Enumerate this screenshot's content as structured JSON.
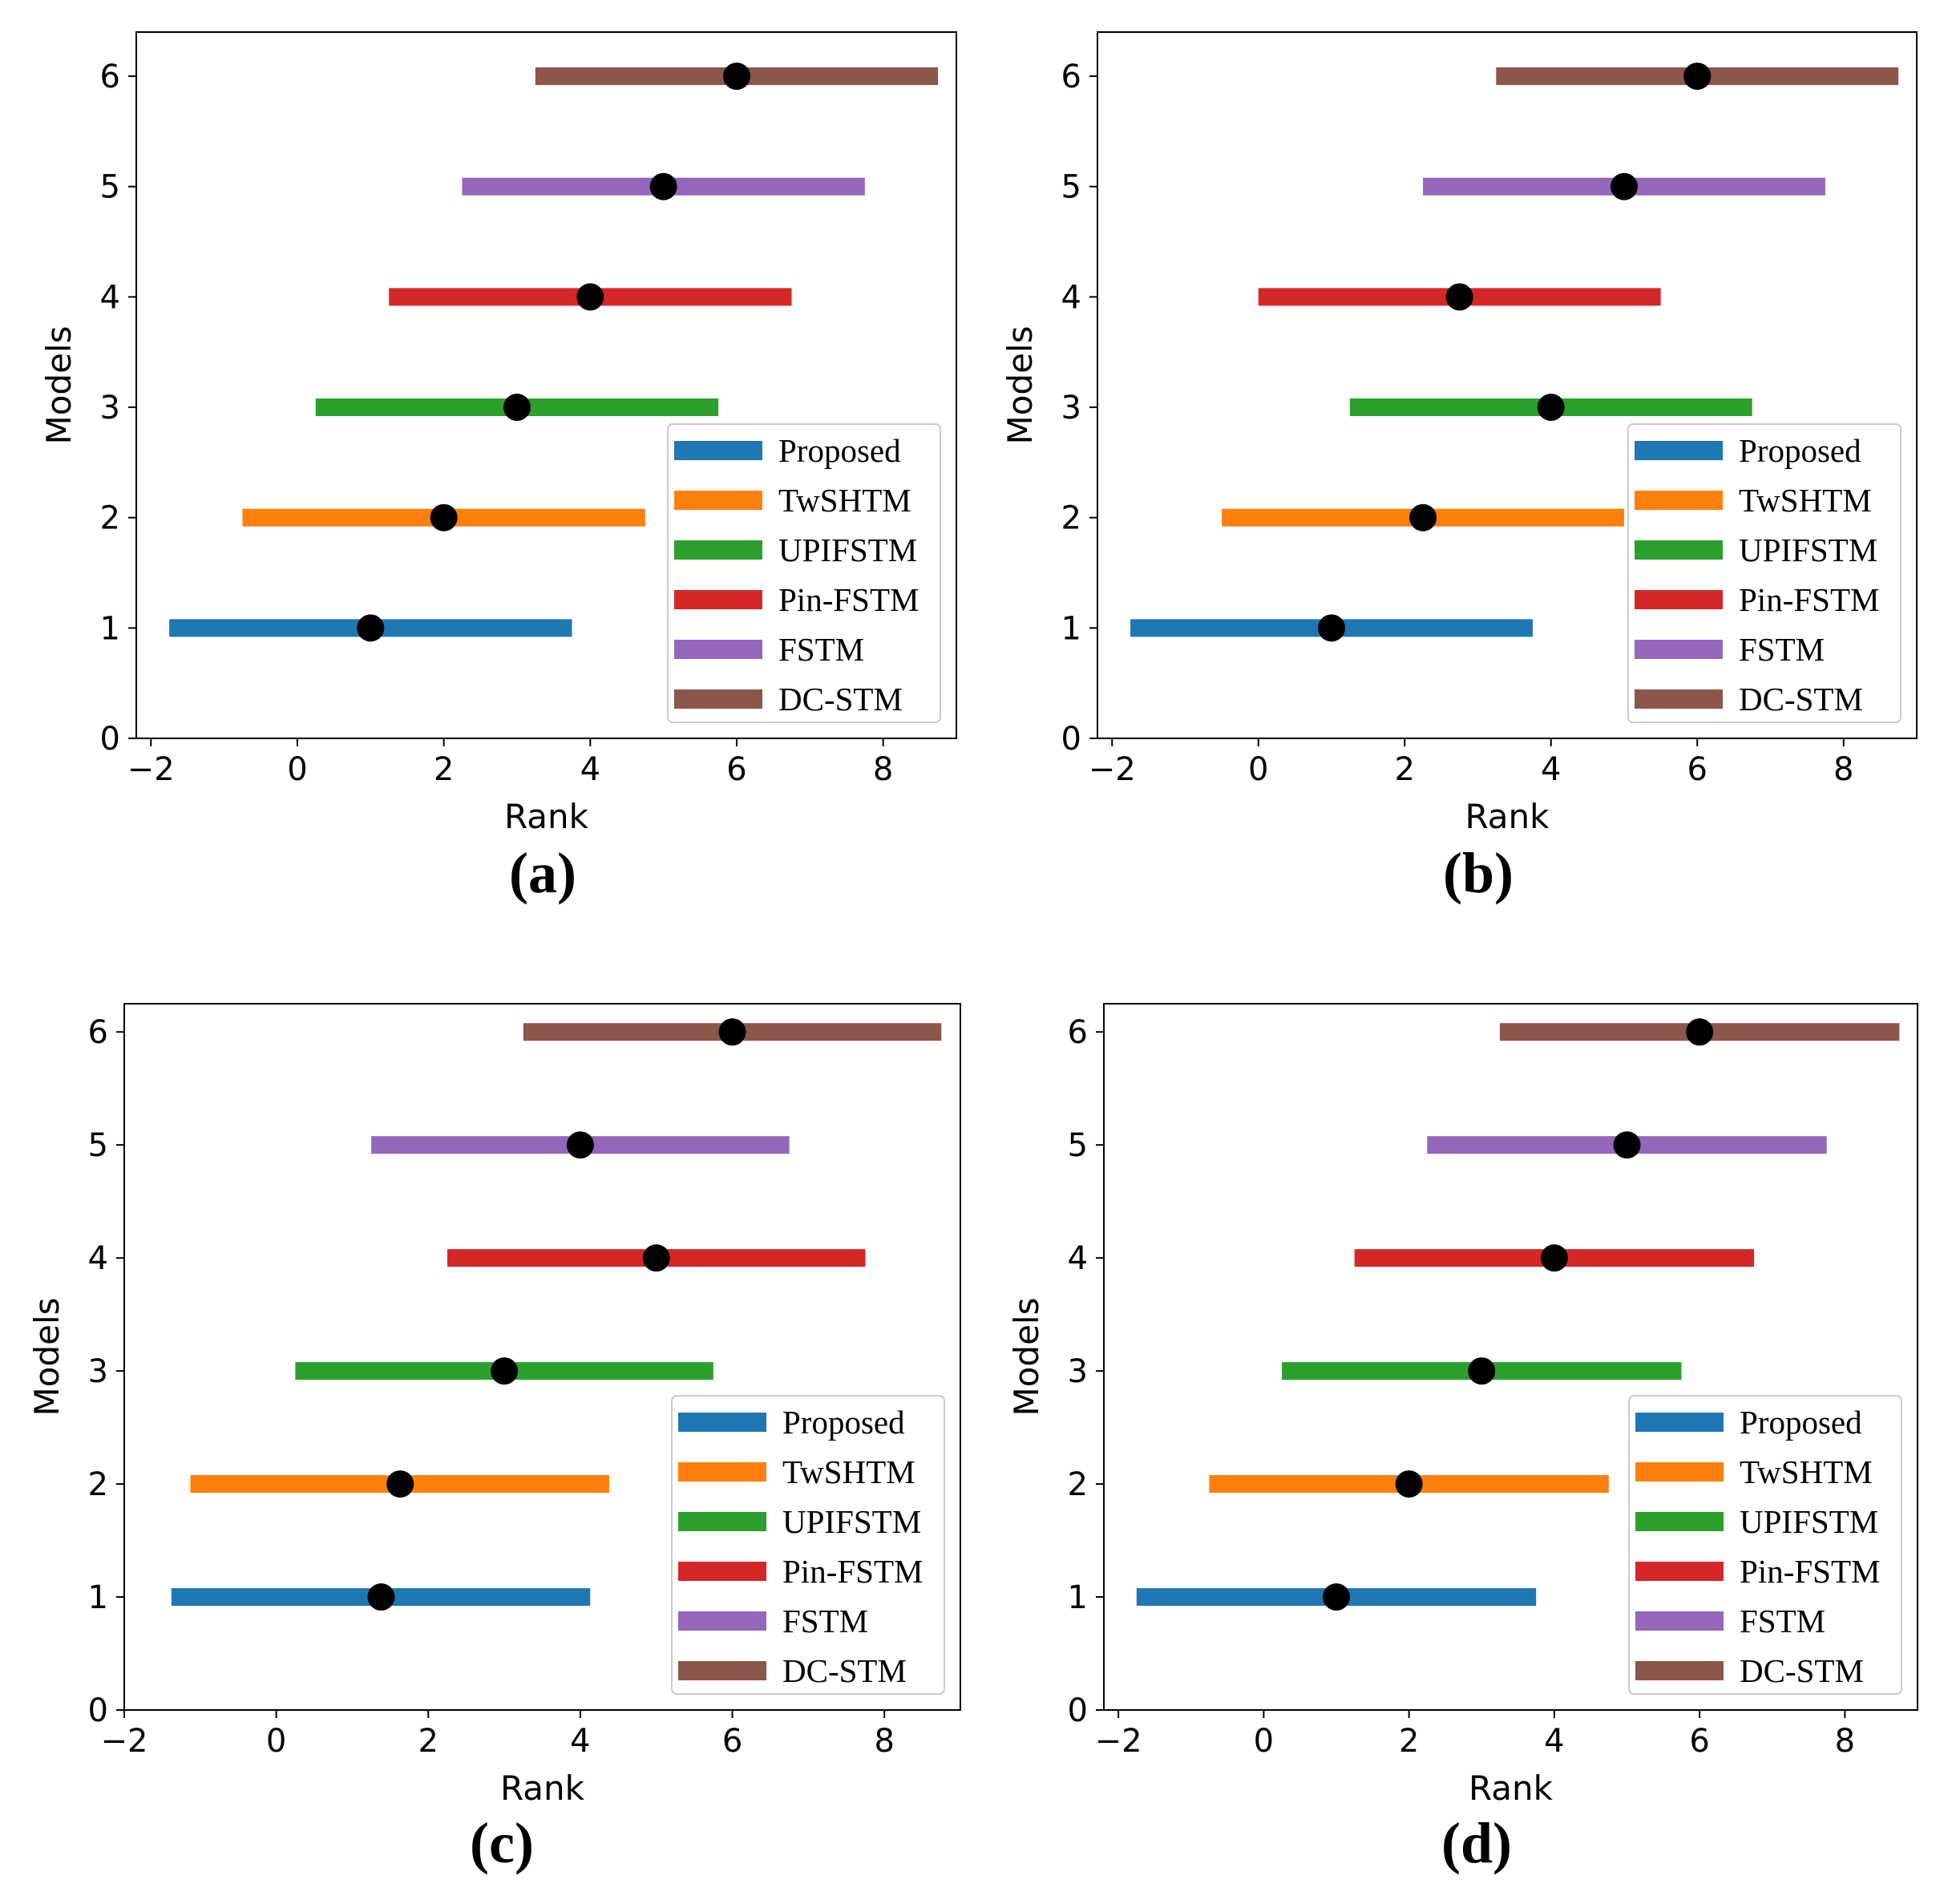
{
  "colors": {
    "Proposed": "#1f77b4",
    "TwSHTM": "#ff7f0e",
    "UPIFSTM": "#2ca02c",
    "Pin-FSTM": "#d62728",
    "FSTM": "#9467bd",
    "DC-STM": "#8c564b",
    "marker": "#000000"
  },
  "chart_data": [
    {
      "type": "interval",
      "panel_label": "(a)",
      "xlabel": "Rank",
      "ylabel": "Models",
      "xlim": [
        -2.2,
        9.0
      ],
      "ylim": [
        0,
        6.4
      ],
      "xticks": [
        -2,
        0,
        2,
        4,
        6,
        8
      ],
      "yticks": [
        0,
        1,
        2,
        3,
        4,
        5,
        6
      ],
      "legend": [
        "Proposed",
        "TwSHTM",
        "UPIFSTM",
        "Pin-FSTM",
        "FSTM",
        "DC-STM"
      ],
      "series": [
        {
          "name": "Proposed",
          "y": 1,
          "low": -1.75,
          "high": 3.75,
          "rank": 1.0
        },
        {
          "name": "TwSHTM",
          "y": 2,
          "low": -0.75,
          "high": 4.75,
          "rank": 2.0
        },
        {
          "name": "UPIFSTM",
          "y": 3,
          "low": 0.25,
          "high": 5.75,
          "rank": 3.0
        },
        {
          "name": "Pin-FSTM",
          "y": 4,
          "low": 1.25,
          "high": 6.75,
          "rank": 4.0
        },
        {
          "name": "FSTM",
          "y": 5,
          "low": 2.25,
          "high": 7.75,
          "rank": 5.0
        },
        {
          "name": "DC-STM",
          "y": 6,
          "low": 3.25,
          "high": 8.75,
          "rank": 6.0
        }
      ]
    },
    {
      "type": "interval",
      "panel_label": "(b)",
      "xlabel": "Rank",
      "ylabel": "Models",
      "xlim": [
        -2.2,
        9.0
      ],
      "ylim": [
        0,
        6.4
      ],
      "xticks": [
        -2,
        0,
        2,
        4,
        6,
        8
      ],
      "yticks": [
        0,
        1,
        2,
        3,
        4,
        5,
        6
      ],
      "legend": [
        "Proposed",
        "TwSHTM",
        "UPIFSTM",
        "Pin-FSTM",
        "FSTM",
        "DC-STM"
      ],
      "series": [
        {
          "name": "Proposed",
          "y": 1,
          "low": -1.75,
          "high": 3.75,
          "rank": 1.0
        },
        {
          "name": "TwSHTM",
          "y": 2,
          "low": -0.5,
          "high": 5.0,
          "rank": 2.25
        },
        {
          "name": "UPIFSTM",
          "y": 3,
          "low": 1.25,
          "high": 6.75,
          "rank": 4.0
        },
        {
          "name": "Pin-FSTM",
          "y": 4,
          "low": 0.0,
          "high": 5.5,
          "rank": 2.75
        },
        {
          "name": "FSTM",
          "y": 5,
          "low": 2.25,
          "high": 7.75,
          "rank": 5.0
        },
        {
          "name": "DC-STM",
          "y": 6,
          "low": 3.25,
          "high": 8.75,
          "rank": 6.0
        }
      ]
    },
    {
      "type": "interval",
      "panel_label": "(c)",
      "xlabel": "Rank",
      "ylabel": "Models",
      "xlim": [
        -2.0,
        9.0
      ],
      "ylim": [
        0,
        6.25
      ],
      "xticks": [
        -2,
        0,
        2,
        4,
        6,
        8
      ],
      "yticks": [
        0,
        1,
        2,
        3,
        4,
        5,
        6
      ],
      "legend": [
        "Proposed",
        "TwSHTM",
        "UPIFSTM",
        "Pin-FSTM",
        "FSTM",
        "DC-STM"
      ],
      "series": [
        {
          "name": "Proposed",
          "y": 1,
          "low": -1.38,
          "high": 4.13,
          "rank": 1.38
        },
        {
          "name": "TwSHTM",
          "y": 2,
          "low": -1.13,
          "high": 4.38,
          "rank": 1.63
        },
        {
          "name": "UPIFSTM",
          "y": 3,
          "low": 0.25,
          "high": 5.75,
          "rank": 3.0
        },
        {
          "name": "Pin-FSTM",
          "y": 4,
          "low": 2.25,
          "high": 7.75,
          "rank": 5.0
        },
        {
          "name": "FSTM",
          "y": 5,
          "low": 1.25,
          "high": 6.75,
          "rank": 4.0
        },
        {
          "name": "DC-STM",
          "y": 6,
          "low": 3.25,
          "high": 8.75,
          "rank": 6.0
        }
      ]
    },
    {
      "type": "interval",
      "panel_label": "(d)",
      "xlabel": "Rank",
      "ylabel": "Models",
      "xlim": [
        -2.2,
        9.0
      ],
      "ylim": [
        0,
        6.25
      ],
      "xticks": [
        -2,
        0,
        2,
        4,
        6,
        8
      ],
      "yticks": [
        0,
        1,
        2,
        3,
        4,
        5,
        6
      ],
      "legend": [
        "Proposed",
        "TwSHTM",
        "UPIFSTM",
        "Pin-FSTM",
        "FSTM",
        "DC-STM"
      ],
      "series": [
        {
          "name": "Proposed",
          "y": 1,
          "low": -1.75,
          "high": 3.75,
          "rank": 1.0
        },
        {
          "name": "TwSHTM",
          "y": 2,
          "low": -0.75,
          "high": 4.75,
          "rank": 2.0
        },
        {
          "name": "UPIFSTM",
          "y": 3,
          "low": 0.25,
          "high": 5.75,
          "rank": 3.0
        },
        {
          "name": "Pin-FSTM",
          "y": 4,
          "low": 1.25,
          "high": 6.75,
          "rank": 4.0
        },
        {
          "name": "FSTM",
          "y": 5,
          "low": 2.25,
          "high": 7.75,
          "rank": 5.0
        },
        {
          "name": "DC-STM",
          "y": 6,
          "low": 3.25,
          "high": 8.75,
          "rank": 6.0
        }
      ]
    }
  ]
}
